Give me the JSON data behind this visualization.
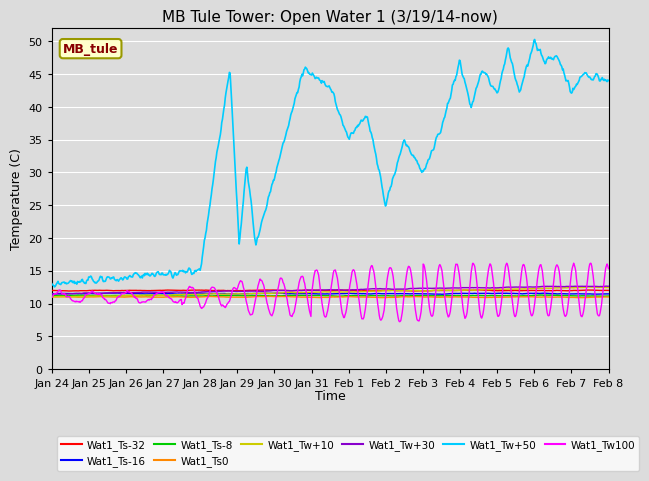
{
  "title": "MB Tule Tower: Open Water 1 (3/19/14-now)",
  "xlabel": "Time",
  "ylabel": "Temperature (C)",
  "ylim": [
    0,
    52
  ],
  "yticks": [
    0,
    5,
    10,
    15,
    20,
    25,
    30,
    35,
    40,
    45,
    50
  ],
  "bg_color": "#dcdcdc",
  "xtick_labels": [
    "Jan 24",
    "Jan 25",
    "Jan 26",
    "Jan 27",
    "Jan 28",
    "Jan 29",
    "Jan 30",
    "Jan 31",
    "Feb 1",
    "Feb 2",
    "Feb 3",
    "Feb 4",
    "Feb 5",
    "Feb 6",
    "Feb 7",
    "Feb 8"
  ],
  "series_colors": {
    "ts32": "#ff0000",
    "ts16": "#0000ff",
    "ts8": "#00cc00",
    "ts0": "#ff8800",
    "tw10": "#cccc00",
    "tw30": "#8800cc",
    "tw50": "#00ccff",
    "tw100": "#ff00ff"
  },
  "legend_labels": {
    "ts32": "Wat1_Ts-32",
    "ts16": "Wat1_Ts-16",
    "ts8": "Wat1_Ts-8",
    "ts0": "Wat1_Ts0",
    "tw10": "Wat1_Tw+10",
    "tw30": "Wat1_Tw+30",
    "tw50": "Wat1_Tw+50",
    "tw100": "Wat1_Tw100"
  },
  "mb_tule_label": "MB_tule",
  "mb_tule_color": "#880000",
  "mb_tule_bg": "#ffffcc",
  "mb_tule_edge": "#999900"
}
